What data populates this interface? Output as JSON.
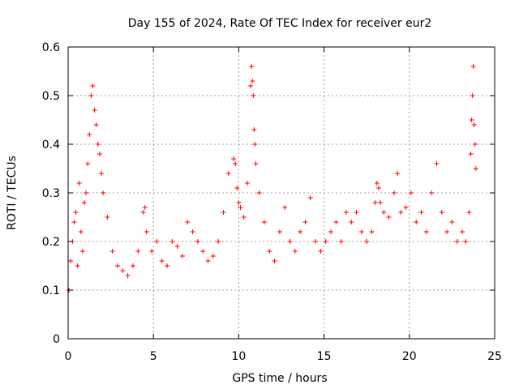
{
  "chart_data": {
    "type": "scatter",
    "title": "Day 155 of 2024, Rate Of TEC Index for receiver eur2",
    "xlabel": "GPS time / hours",
    "ylabel": "ROTI / TECUs",
    "xlim": [
      0,
      25
    ],
    "ylim": [
      0,
      0.6
    ],
    "x_ticks": [
      "0",
      "5",
      "10",
      "15",
      "20",
      "25"
    ],
    "y_ticks": [
      "0",
      "0.1",
      "0.2",
      "0.3",
      "0.4",
      "0.5",
      "0.6"
    ],
    "grid": true,
    "marker": "plus",
    "color": "#ff0000",
    "series": [
      {
        "x": [
          0.05,
          0.15,
          0.25,
          0.35,
          0.45,
          0.55,
          0.65,
          0.75,
          0.85,
          0.95,
          1.05,
          1.15,
          1.25,
          1.35,
          1.45,
          1.55,
          1.65,
          1.75,
          1.85,
          1.95,
          2.05,
          2.3,
          2.6,
          2.9,
          3.2,
          3.5,
          3.8,
          4.1,
          4.4,
          4.5,
          4.6,
          4.9,
          5.2,
          5.5,
          5.8,
          6.1,
          6.4,
          6.7,
          7.0,
          7.3,
          7.6,
          7.9,
          8.2,
          8.5,
          8.8,
          9.1,
          9.4,
          9.7,
          9.8,
          9.9,
          10.0,
          10.1,
          10.3,
          10.5,
          10.7,
          10.75,
          10.8,
          10.85,
          10.9,
          10.95,
          11.0,
          11.2,
          11.5,
          11.8,
          12.1,
          12.4,
          12.7,
          13.0,
          13.3,
          13.6,
          13.9,
          14.2,
          14.5,
          14.8,
          15.1,
          15.4,
          15.7,
          16.0,
          16.3,
          16.6,
          16.9,
          17.2,
          17.5,
          17.8,
          18.0,
          18.1,
          18.2,
          18.3,
          18.5,
          18.8,
          19.1,
          19.3,
          19.5,
          19.8,
          20.1,
          20.4,
          20.7,
          21.0,
          21.3,
          21.6,
          21.9,
          22.2,
          22.5,
          22.8,
          23.1,
          23.3,
          23.5,
          23.6,
          23.65,
          23.7,
          23.75,
          23.8,
          23.85,
          23.9
        ],
        "y": [
          0.1,
          0.16,
          0.2,
          0.24,
          0.26,
          0.15,
          0.32,
          0.22,
          0.18,
          0.28,
          0.3,
          0.36,
          0.42,
          0.5,
          0.52,
          0.47,
          0.44,
          0.4,
          0.38,
          0.34,
          0.3,
          0.25,
          0.18,
          0.15,
          0.14,
          0.13,
          0.15,
          0.18,
          0.26,
          0.27,
          0.22,
          0.18,
          0.2,
          0.16,
          0.15,
          0.2,
          0.19,
          0.17,
          0.24,
          0.22,
          0.2,
          0.18,
          0.16,
          0.17,
          0.2,
          0.26,
          0.34,
          0.37,
          0.36,
          0.31,
          0.28,
          0.27,
          0.25,
          0.32,
          0.52,
          0.56,
          0.53,
          0.5,
          0.43,
          0.4,
          0.36,
          0.3,
          0.24,
          0.18,
          0.16,
          0.22,
          0.27,
          0.2,
          0.18,
          0.22,
          0.24,
          0.29,
          0.2,
          0.18,
          0.2,
          0.22,
          0.24,
          0.2,
          0.26,
          0.24,
          0.26,
          0.22,
          0.2,
          0.22,
          0.28,
          0.32,
          0.31,
          0.28,
          0.26,
          0.25,
          0.3,
          0.34,
          0.26,
          0.27,
          0.3,
          0.24,
          0.26,
          0.22,
          0.3,
          0.36,
          0.26,
          0.22,
          0.24,
          0.2,
          0.22,
          0.2,
          0.26,
          0.38,
          0.45,
          0.5,
          0.56,
          0.44,
          0.4,
          0.35
        ]
      }
    ]
  }
}
